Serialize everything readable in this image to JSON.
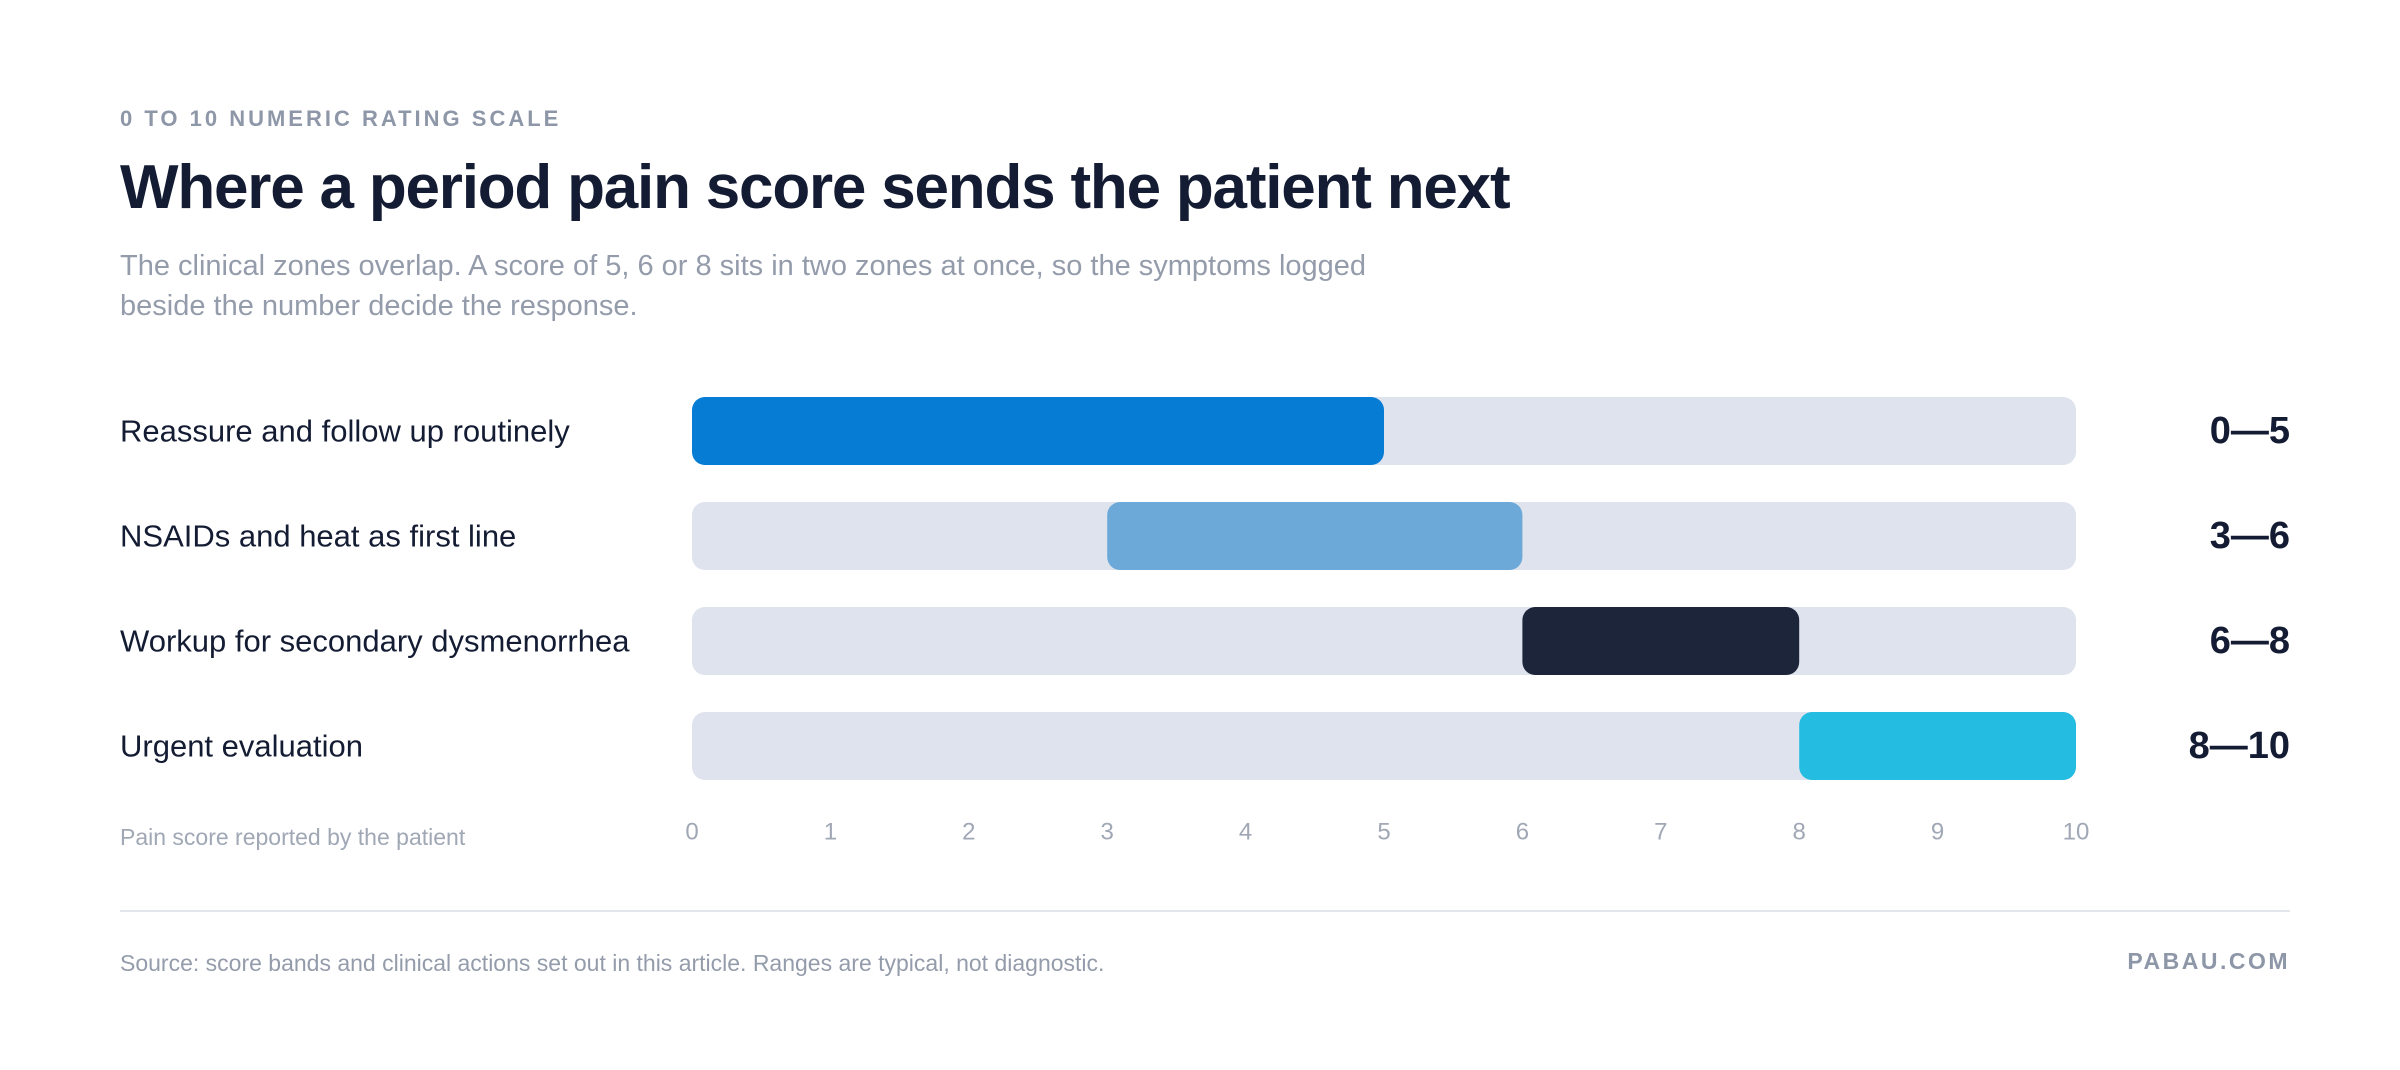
{
  "header": {
    "eyebrow": "0 TO 10 NUMERIC RATING SCALE",
    "title": "Where a period pain score sends the patient next",
    "subtitle": "The clinical zones overlap. A score of 5, 6 or 8 sits in two zones at once, so the symptoms logged beside the number decide the response."
  },
  "chart_data": {
    "type": "bar",
    "orientation": "horizontal-range",
    "xlabel": "Pain score reported by the patient",
    "xlim": [
      0,
      10
    ],
    "ticks": [
      "0",
      "1",
      "2",
      "3",
      "4",
      "5",
      "6",
      "7",
      "8",
      "9",
      "10"
    ],
    "grid": false,
    "track_color": "#dfe3ed",
    "rows": [
      {
        "label": "Reassure and follow up routinely",
        "start": 0,
        "end": 5,
        "range_label": "0—5",
        "color": "#077cd5"
      },
      {
        "label": "NSAIDs and heat as first line",
        "start": 3,
        "end": 6,
        "range_label": "3—6",
        "color": "#6ca8d8"
      },
      {
        "label": "Workup for secondary dysmenorrhea",
        "start": 6,
        "end": 8,
        "range_label": "6—8",
        "color": "#1c253a"
      },
      {
        "label": "Urgent evaluation",
        "start": 8,
        "end": 10,
        "range_label": "8—10",
        "color": "#25bce2"
      }
    ]
  },
  "footer": {
    "source": "Source: score bands and clinical actions set out in this article. Ranges are typical, not diagnostic.",
    "brand": "PABAU.COM"
  }
}
